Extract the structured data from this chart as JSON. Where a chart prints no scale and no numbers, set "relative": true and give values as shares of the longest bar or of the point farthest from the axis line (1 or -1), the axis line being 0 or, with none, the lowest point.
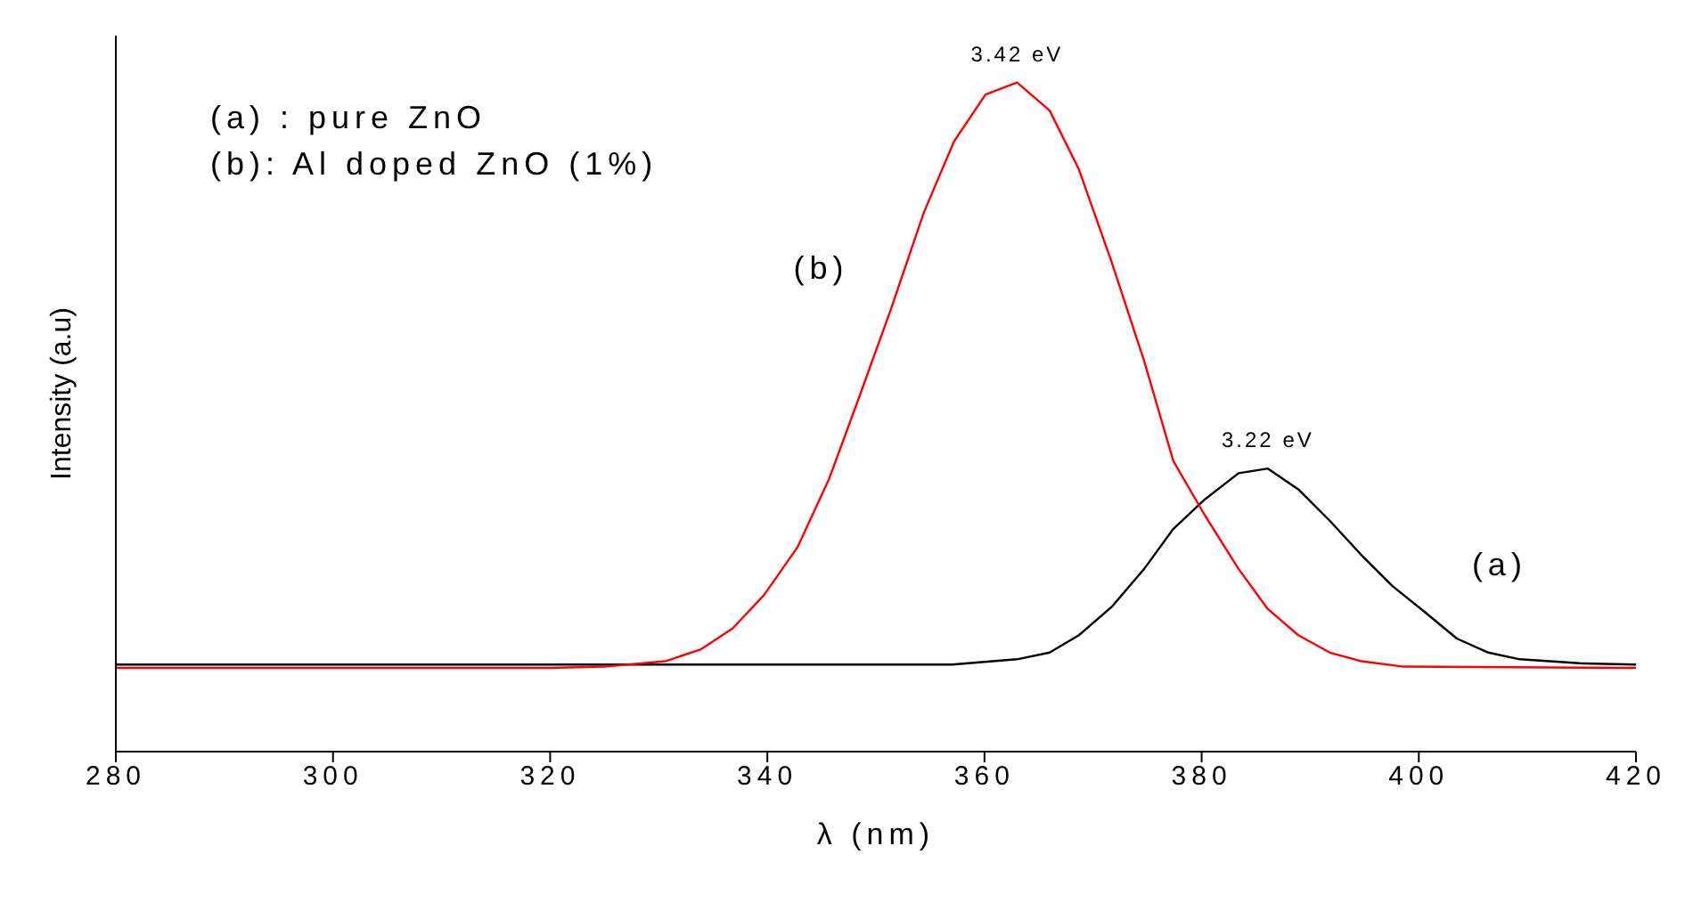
{
  "chart_data": {
    "type": "line",
    "relative": true,
    "xlabel": "λ (nm)",
    "ylabel": "Intensity (a.u)",
    "xlim": [
      280,
      420
    ],
    "xticks": [
      280,
      300,
      320,
      340,
      360,
      380,
      400,
      420
    ],
    "marker": "none",
    "line_style": "solid",
    "annotations": [
      "(a) : pure ZnO",
      "(b): Al doped ZnO (1%)",
      {
        "text": "3.42 eV",
        "x": 363,
        "y": 1
      },
      {
        "text": "3.22 eV",
        "x": 386.1,
        "y": 0.423
      }
    ],
    "series": [
      {
        "name": "(a)",
        "color": "#000000",
        "x": [
          280,
          357,
          363,
          366,
          368.7,
          371.7,
          374.7,
          377.4,
          380.3,
          383.4,
          386.1,
          388.9,
          391.8,
          394.7,
          397.6,
          400.6,
          403.5,
          406.4,
          409.3,
          414.8,
          420
        ],
        "values": [
          0.13,
          0.13,
          0.138,
          0.148,
          0.174,
          0.216,
          0.273,
          0.333,
          0.377,
          0.416,
          0.423,
          0.392,
          0.345,
          0.294,
          0.247,
          0.208,
          0.169,
          0.148,
          0.138,
          0.132,
          0.13
        ]
      },
      {
        "name": "(b)",
        "color": "#ff0000",
        "x": [
          280,
          320,
          325,
          330.6,
          333.9,
          336.8,
          339.7,
          342.8,
          345.7,
          348.4,
          351.4,
          354.4,
          357.2,
          360.1,
          363,
          366,
          368.7,
          371.7,
          374.7,
          377.4,
          380.3,
          383.4,
          386.1,
          388.9,
          391.8,
          394.7,
          398.6,
          420
        ],
        "values": [
          0.125,
          0.125,
          0.127,
          0.135,
          0.153,
          0.184,
          0.234,
          0.306,
          0.408,
          0.527,
          0.662,
          0.805,
          0.912,
          0.982,
          1,
          0.958,
          0.87,
          0.732,
          0.584,
          0.434,
          0.353,
          0.273,
          0.213,
          0.174,
          0.148,
          0.135,
          0.127,
          0.125
        ]
      }
    ]
  }
}
